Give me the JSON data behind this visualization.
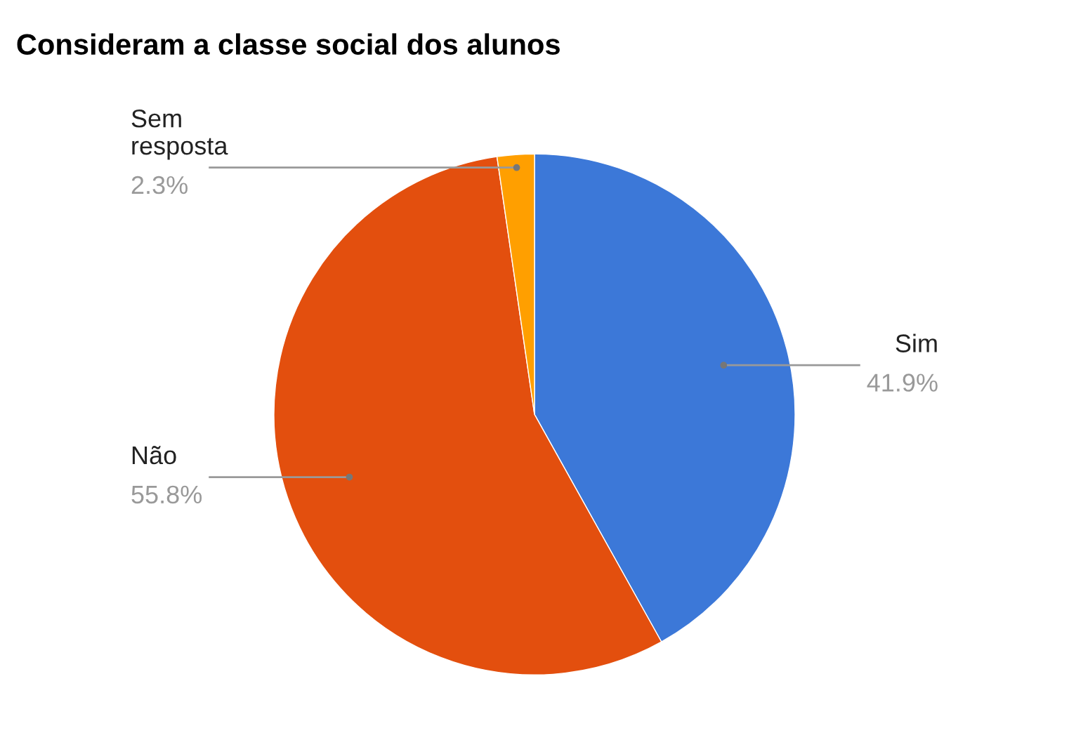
{
  "chart_data": {
    "type": "pie",
    "title": "Consideram a classe social dos alunos",
    "categories": [
      "Sim",
      "Não",
      "Sem resposta"
    ],
    "values": [
      41.9,
      55.8,
      2.3
    ],
    "colors": [
      "#3c78d8",
      "#e34f0e",
      "#ff9f00"
    ],
    "value_labels": [
      "41.9%",
      "55.8%",
      "2.3%"
    ],
    "legend": false
  }
}
